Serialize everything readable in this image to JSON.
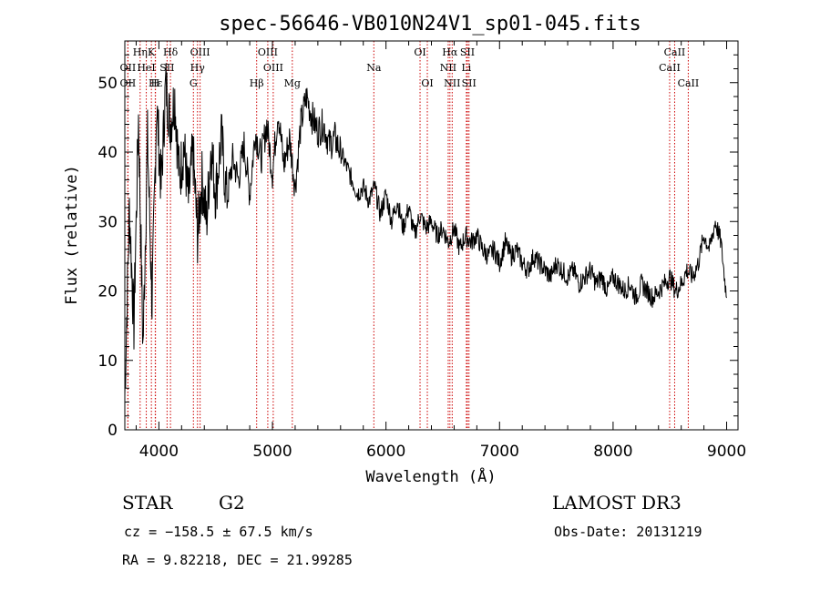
{
  "chart_data": {
    "type": "line",
    "title": "spec-56646-VB010N24V1_sp01-045.fits",
    "xlabel": "Wavelength (Å)",
    "ylabel": "Flux (relative)",
    "xlim": [
      3700,
      9100
    ],
    "ylim": [
      0,
      56
    ],
    "xticks": [
      4000,
      5000,
      6000,
      7000,
      8000,
      9000
    ],
    "yticks": [
      0,
      10,
      20,
      30,
      40,
      50
    ],
    "grid": false,
    "series": [
      {
        "name": "flux",
        "x": [
          3700,
          3740,
          3780,
          3820,
          3860,
          3900,
          3940,
          3980,
          4020,
          4060,
          4100,
          4140,
          4180,
          4220,
          4260,
          4300,
          4340,
          4380,
          4420,
          4460,
          4500,
          4550,
          4600,
          4650,
          4700,
          4750,
          4800,
          4850,
          4900,
          4950,
          5000,
          5050,
          5100,
          5150,
          5200,
          5250,
          5300,
          5350,
          5400,
          5450,
          5500,
          5550,
          5600,
          5650,
          5700,
          5750,
          5800,
          5850,
          5900,
          5950,
          6000,
          6050,
          6100,
          6150,
          6200,
          6250,
          6300,
          6350,
          6400,
          6450,
          6500,
          6550,
          6600,
          6650,
          6700,
          6750,
          6800,
          6850,
          6900,
          6950,
          7000,
          7050,
          7100,
          7150,
          7200,
          7250,
          7300,
          7350,
          7400,
          7450,
          7500,
          7550,
          7600,
          7650,
          7700,
          7750,
          7800,
          7850,
          7900,
          7950,
          8000,
          8050,
          8100,
          8150,
          8200,
          8250,
          8300,
          8350,
          8400,
          8450,
          8500,
          8550,
          8600,
          8650,
          8700,
          8750,
          8800,
          8850,
          8900,
          8950,
          9000
        ],
        "y": [
          5,
          32,
          15,
          45,
          12,
          42,
          18,
          47,
          35,
          50,
          44,
          48,
          36,
          41,
          33,
          40,
          28,
          36,
          30,
          41,
          34,
          42,
          33,
          39,
          36,
          41,
          34,
          43,
          39,
          44,
          37,
          46,
          38,
          42,
          35,
          44,
          48,
          45,
          43,
          44,
          41,
          42,
          40,
          38,
          36,
          34,
          35,
          33,
          35,
          31,
          34,
          30,
          33,
          29,
          32,
          28,
          31,
          29,
          30,
          28,
          29,
          27,
          29,
          26,
          28,
          27,
          28,
          26,
          25,
          26,
          24,
          27,
          25,
          26,
          24,
          23,
          25,
          24,
          23,
          22,
          24,
          23,
          22,
          23,
          21,
          22,
          23,
          21,
          22,
          20,
          22,
          21,
          20,
          21,
          19,
          21,
          20,
          19,
          20,
          21,
          22,
          20,
          21,
          23,
          22,
          24,
          28,
          26,
          30,
          27,
          19
        ]
      }
    ],
    "line_markers": [
      {
        "label": "Hη",
        "wavelength": 3835,
        "row": 0
      },
      {
        "label": "K",
        "wavelength": 3934,
        "row": 0
      },
      {
        "label": "Hδ",
        "wavelength": 4102,
        "row": 0
      },
      {
        "label": "OIII",
        "wavelength": 4363,
        "row": 0
      },
      {
        "label": "OIII",
        "wavelength": 4959,
        "row": 0
      },
      {
        "label": "OI",
        "wavelength": 6300,
        "row": 0
      },
      {
        "label": "Hα",
        "wavelength": 6563,
        "row": 0
      },
      {
        "label": "SII",
        "wavelength": 6717,
        "row": 0
      },
      {
        "label": "CaII",
        "wavelength": 8542,
        "row": 0
      },
      {
        "label": "OII",
        "wavelength": 3727,
        "row": 1
      },
      {
        "label": "HeI",
        "wavelength": 3889,
        "row": 1
      },
      {
        "label": "SII",
        "wavelength": 4072,
        "row": 1
      },
      {
        "label": "Hγ",
        "wavelength": 4340,
        "row": 1
      },
      {
        "label": "OIII",
        "wavelength": 5007,
        "row": 1
      },
      {
        "label": "Na",
        "wavelength": 5893,
        "row": 1
      },
      {
        "label": "NII",
        "wavelength": 6548,
        "row": 1
      },
      {
        "label": "Li",
        "wavelength": 6708,
        "row": 1
      },
      {
        "label": "CaII",
        "wavelength": 8498,
        "row": 1
      },
      {
        "label": "OII",
        "wavelength": 3727,
        "row": 2
      },
      {
        "label": "Hε",
        "wavelength": 3970,
        "row": 2
      },
      {
        "label": "H",
        "wavelength": 3968,
        "row": 2
      },
      {
        "label": "G",
        "wavelength": 4304,
        "row": 2
      },
      {
        "label": "Hβ",
        "wavelength": 4861,
        "row": 2
      },
      {
        "label": "Mg",
        "wavelength": 5175,
        "row": 2
      },
      {
        "label": "OI",
        "wavelength": 6364,
        "row": 2
      },
      {
        "label": "NII",
        "wavelength": 6583,
        "row": 2
      },
      {
        "label": "SII",
        "wavelength": 6731,
        "row": 2
      },
      {
        "label": "CaII",
        "wavelength": 8662,
        "row": 2
      }
    ]
  },
  "info": {
    "class_label": "STAR",
    "subclass": "G2",
    "survey": "LAMOST DR3",
    "redshift_line": "cz = −158.5 ± 67.5 km/s",
    "obs_date": "Obs-Date: 20131219",
    "coords": "RA =   9.82218, DEC =  21.99285"
  },
  "colors": {
    "line_marker": "#cc0000",
    "spectrum": "#000000"
  }
}
